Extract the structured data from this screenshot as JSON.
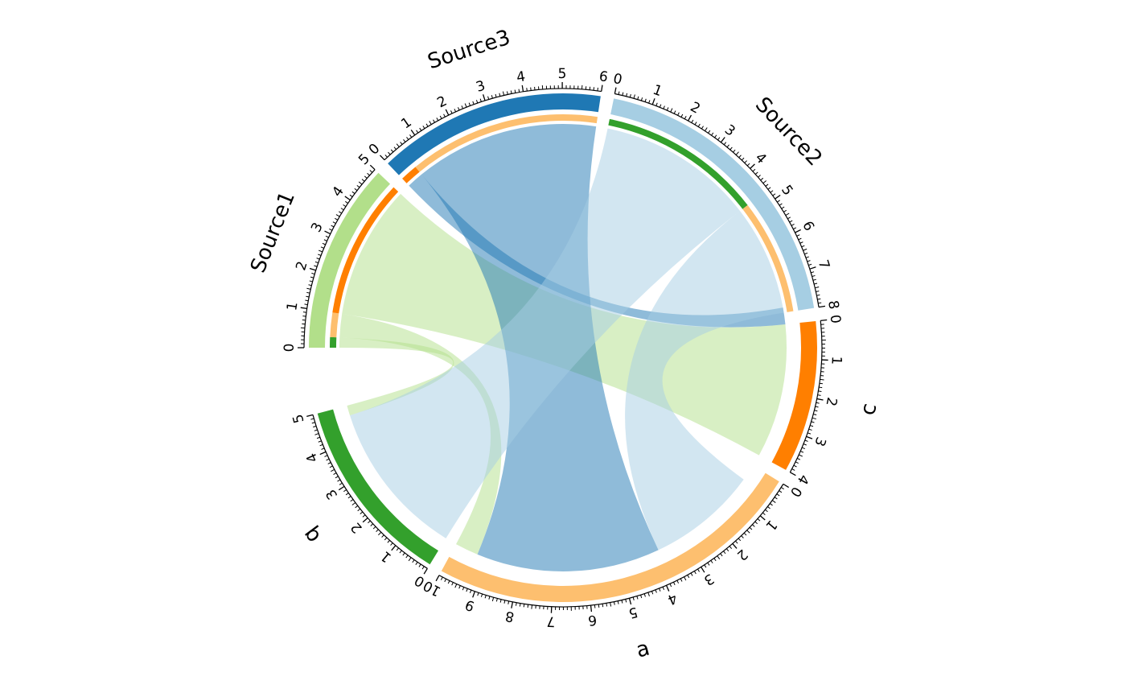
{
  "chart_data": {
    "type": "chord",
    "title": "",
    "sectors": [
      {
        "name": "Source1",
        "size": 5,
        "color": "#b2df8a",
        "tick_labels": [
          "0",
          "1",
          "2",
          "3",
          "4",
          "5"
        ]
      },
      {
        "name": "Source3",
        "size": 6,
        "color": "#1f78b4",
        "tick_labels": [
          "0",
          "1",
          "2",
          "3",
          "4",
          "5",
          "6"
        ]
      },
      {
        "name": "Source2",
        "size": 8,
        "color": "#a6cee3",
        "tick_labels": [
          "0",
          "1",
          "2",
          "3",
          "4",
          "5",
          "6",
          "7",
          "8"
        ]
      },
      {
        "name": "c",
        "size": 4,
        "color": "#ff7f00",
        "tick_labels": [
          "0",
          "1",
          "2",
          "3",
          "4"
        ]
      },
      {
        "name": "a",
        "size": 10,
        "color": "#fdbf6f",
        "tick_labels": [
          "0",
          "1",
          "2",
          "3",
          "4",
          "5",
          "6",
          "7",
          "8",
          "9",
          "10"
        ]
      },
      {
        "name": "b",
        "size": 5,
        "color": "#33a02c",
        "tick_labels": [
          "0",
          "1",
          "2",
          "3",
          "4",
          "5"
        ]
      }
    ],
    "links": [
      {
        "source": "Source1",
        "target": "b",
        "value": 0.3
      },
      {
        "source": "Source1",
        "target": "a",
        "value": 0.7
      },
      {
        "source": "Source1",
        "target": "c",
        "value": 4.0
      },
      {
        "source": "Source3",
        "target": "c",
        "value": 0.5
      },
      {
        "source": "Source3",
        "target": "a",
        "value": 5.5
      },
      {
        "source": "Source2",
        "target": "b",
        "value": 4.7
      },
      {
        "source": "Source2",
        "target": "a",
        "value": 3.3
      }
    ]
  }
}
